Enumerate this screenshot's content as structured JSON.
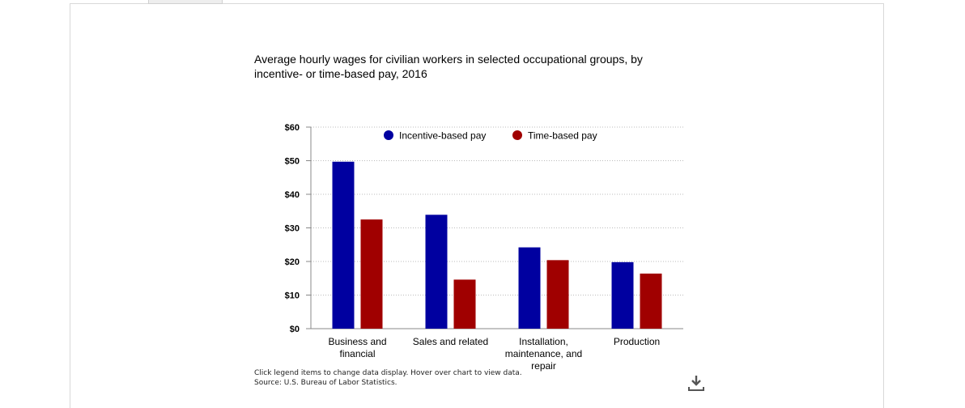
{
  "chart_data": {
    "type": "bar",
    "title": "Average hourly wages for civilian workers in selected occupational groups, by incentive- or time-based pay, 2016",
    "categories": [
      [
        "Business and",
        "financial"
      ],
      [
        "Sales and related"
      ],
      [
        "Installation,",
        "maintenance, and",
        "repair"
      ],
      [
        "Production"
      ]
    ],
    "series": [
      {
        "name": "Incentive-based pay",
        "color": "#0000a0",
        "values": [
          49.7,
          33.9,
          24.2,
          19.8
        ]
      },
      {
        "name": "Time-based pay",
        "color": "#a00000",
        "values": [
          32.5,
          14.6,
          20.4,
          16.4
        ]
      }
    ],
    "ylim": [
      0,
      60
    ],
    "yticks": [
      0,
      10,
      20,
      30,
      40,
      50,
      60
    ],
    "ytick_labels": [
      "$0",
      "$10",
      "$20",
      "$30",
      "$40",
      "$50",
      "$60"
    ],
    "xlabel": "",
    "ylabel": "",
    "grid": true,
    "legend_position": "top-center"
  },
  "footnote": {
    "line1": "Click legend items to change data display. Hover over chart to view data.",
    "line2": "Source: U.S. Bureau of Labor Statistics."
  },
  "download_icon": "download-icon"
}
